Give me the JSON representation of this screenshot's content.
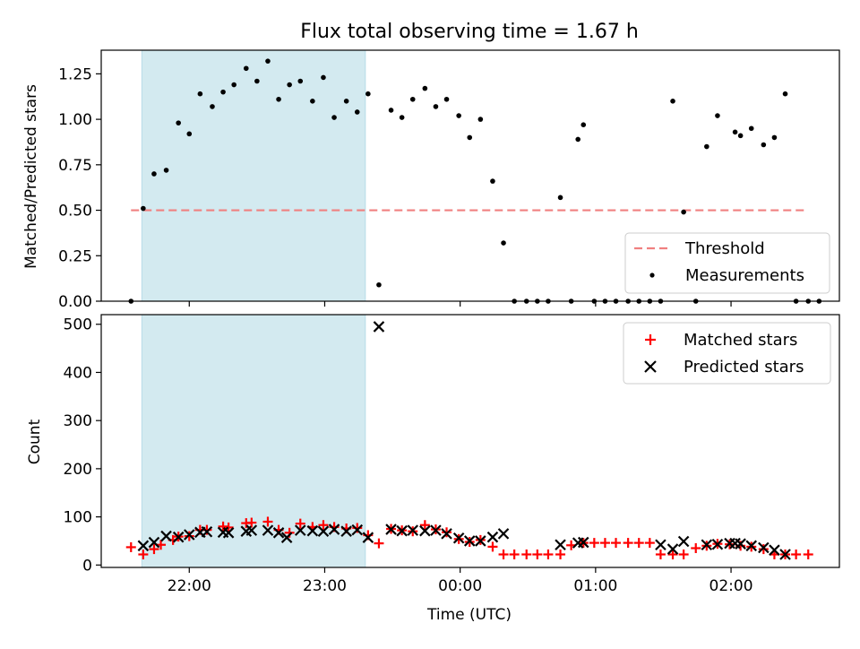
{
  "chart_data": {
    "title": "Flux total observing time = 1.67 h",
    "xlabel": "Time (UTC)",
    "x_ticks": [
      "22:00",
      "23:00",
      "00:00",
      "01:00",
      "02:00"
    ],
    "x_tick_hours": [
      22,
      23,
      24,
      25,
      26
    ],
    "x_range_hours": [
      21.35,
      26.8
    ],
    "shaded_span_hours": [
      21.65,
      23.3
    ],
    "shade_color": "#d3eaf0",
    "top": {
      "type": "scatter",
      "ylabel": "Matched/Predicted stars",
      "ylim": [
        0,
        1.38
      ],
      "yticks": [
        "0.00",
        "0.25",
        "0.50",
        "0.75",
        "1.00",
        "1.25"
      ],
      "ytick_values": [
        0,
        0.25,
        0.5,
        0.75,
        1.0,
        1.25
      ],
      "threshold": {
        "name": "Threshold",
        "value": 0.5,
        "x_range": [
          21.57,
          26.57
        ],
        "color": "#f08080"
      },
      "measurements_name": "Measurements",
      "measurements": [
        [
          21.57,
          0.0
        ],
        [
          21.66,
          0.51
        ],
        [
          21.74,
          0.7
        ],
        [
          21.83,
          0.72
        ],
        [
          21.92,
          0.98
        ],
        [
          22.0,
          0.92
        ],
        [
          22.08,
          1.14
        ],
        [
          22.17,
          1.07
        ],
        [
          22.25,
          1.15
        ],
        [
          22.33,
          1.19
        ],
        [
          22.42,
          1.28
        ],
        [
          22.5,
          1.21
        ],
        [
          22.58,
          1.32
        ],
        [
          22.66,
          1.11
        ],
        [
          22.74,
          1.19
        ],
        [
          22.82,
          1.21
        ],
        [
          22.91,
          1.1
        ],
        [
          22.99,
          1.23
        ],
        [
          23.07,
          1.01
        ],
        [
          23.16,
          1.1
        ],
        [
          23.24,
          1.04
        ],
        [
          23.32,
          1.14
        ],
        [
          23.4,
          0.09
        ],
        [
          23.49,
          1.05
        ],
        [
          23.57,
          1.01
        ],
        [
          23.65,
          1.11
        ],
        [
          23.74,
          1.17
        ],
        [
          23.82,
          1.07
        ],
        [
          23.9,
          1.11
        ],
        [
          23.99,
          1.02
        ],
        [
          24.07,
          0.9
        ],
        [
          24.15,
          1.0
        ],
        [
          24.24,
          0.66
        ],
        [
          24.32,
          0.32
        ],
        [
          24.4,
          0.0
        ],
        [
          24.49,
          0.0
        ],
        [
          24.57,
          0.0
        ],
        [
          24.65,
          0.0
        ],
        [
          24.74,
          0.57
        ],
        [
          24.82,
          0.0
        ],
        [
          24.87,
          0.89
        ],
        [
          24.91,
          0.97
        ],
        [
          24.99,
          0.0
        ],
        [
          25.07,
          0.0
        ],
        [
          25.15,
          0.0
        ],
        [
          25.24,
          0.0
        ],
        [
          25.32,
          0.0
        ],
        [
          25.4,
          0.0
        ],
        [
          25.48,
          0.0
        ],
        [
          25.57,
          1.1
        ],
        [
          25.65,
          0.49
        ],
        [
          25.74,
          0.0
        ],
        [
          25.82,
          0.85
        ],
        [
          25.9,
          1.02
        ],
        [
          26.07,
          0.91
        ],
        [
          26.03,
          0.93
        ],
        [
          26.15,
          0.95
        ],
        [
          26.24,
          0.86
        ],
        [
          26.32,
          0.9
        ],
        [
          26.4,
          1.14
        ],
        [
          26.48,
          0.0
        ],
        [
          26.57,
          0.0
        ],
        [
          26.65,
          0.0
        ]
      ],
      "legend": [
        "Threshold",
        "Measurements"
      ]
    },
    "bottom": {
      "type": "scatter",
      "ylabel": "Count",
      "ylim": [
        -5,
        520
      ],
      "yticks": [
        "0",
        "100",
        "200",
        "300",
        "400",
        "500"
      ],
      "ytick_values": [
        0,
        100,
        200,
        300,
        400,
        500
      ],
      "series": [
        {
          "name": "Matched stars",
          "color": "#ff0000",
          "marker": "plus",
          "points": [
            [
              21.57,
              37
            ],
            [
              21.66,
              22
            ],
            [
              21.74,
              33
            ],
            [
              21.79,
              42
            ],
            [
              21.88,
              52
            ],
            [
              21.92,
              59
            ],
            [
              22.0,
              60
            ],
            [
              22.08,
              73
            ],
            [
              22.13,
              73
            ],
            [
              22.25,
              80
            ],
            [
              22.29,
              78
            ],
            [
              22.42,
              87
            ],
            [
              22.46,
              88
            ],
            [
              22.58,
              90
            ],
            [
              22.66,
              73
            ],
            [
              22.74,
              67
            ],
            [
              22.82,
              86
            ],
            [
              22.91,
              79
            ],
            [
              22.99,
              83
            ],
            [
              23.07,
              79
            ],
            [
              23.16,
              76
            ],
            [
              23.24,
              77
            ],
            [
              23.32,
              62
            ],
            [
              23.4,
              45
            ],
            [
              23.49,
              75
            ],
            [
              23.57,
              72
            ],
            [
              23.65,
              70
            ],
            [
              23.74,
              83
            ],
            [
              23.82,
              74
            ],
            [
              23.9,
              68
            ],
            [
              23.99,
              54
            ],
            [
              24.07,
              48
            ],
            [
              24.15,
              52
            ],
            [
              24.24,
              38
            ],
            [
              24.32,
              22
            ],
            [
              24.4,
              22
            ],
            [
              24.49,
              22
            ],
            [
              24.57,
              22
            ],
            [
              24.65,
              22
            ],
            [
              24.74,
              22
            ],
            [
              24.82,
              41
            ],
            [
              24.91,
              46
            ],
            [
              24.99,
              46
            ],
            [
              25.07,
              46
            ],
            [
              25.15,
              46
            ],
            [
              25.24,
              46
            ],
            [
              25.32,
              46
            ],
            [
              25.4,
              46
            ],
            [
              25.48,
              22
            ],
            [
              25.57,
              22
            ],
            [
              25.65,
              22
            ],
            [
              25.74,
              35
            ],
            [
              25.82,
              40
            ],
            [
              25.9,
              44
            ],
            [
              25.99,
              43
            ],
            [
              26.07,
              40
            ],
            [
              26.15,
              38
            ],
            [
              26.24,
              33
            ],
            [
              26.32,
              22
            ],
            [
              26.4,
              22
            ],
            [
              26.48,
              22
            ],
            [
              26.57,
              22
            ]
          ]
        },
        {
          "name": "Predicted stars",
          "color": "#000000",
          "marker": "x",
          "points": [
            [
              21.66,
              40
            ],
            [
              21.74,
              47
            ],
            [
              21.83,
              60
            ],
            [
              21.92,
              58
            ],
            [
              22.0,
              63
            ],
            [
              22.08,
              68
            ],
            [
              22.13,
              69
            ],
            [
              22.25,
              68
            ],
            [
              22.29,
              67
            ],
            [
              22.42,
              70
            ],
            [
              22.46,
              72
            ],
            [
              22.58,
              72
            ],
            [
              22.66,
              67
            ],
            [
              22.72,
              57
            ],
            [
              22.82,
              72
            ],
            [
              22.91,
              71
            ],
            [
              22.99,
              70
            ],
            [
              23.07,
              74
            ],
            [
              23.16,
              70
            ],
            [
              23.24,
              73
            ],
            [
              23.32,
              57
            ],
            [
              23.4,
              495
            ],
            [
              23.49,
              74
            ],
            [
              23.57,
              71
            ],
            [
              23.65,
              72
            ],
            [
              23.74,
              71
            ],
            [
              23.82,
              72
            ],
            [
              23.9,
              65
            ],
            [
              23.99,
              56
            ],
            [
              24.07,
              50
            ],
            [
              24.15,
              50
            ],
            [
              24.24,
              58
            ],
            [
              24.32,
              65
            ],
            [
              24.74,
              42
            ],
            [
              24.87,
              46
            ],
            [
              24.91,
              47
            ],
            [
              25.48,
              42
            ],
            [
              25.57,
              33
            ],
            [
              25.65,
              49
            ],
            [
              25.82,
              42
            ],
            [
              25.9,
              43
            ],
            [
              25.99,
              45
            ],
            [
              26.03,
              45
            ],
            [
              26.07,
              44
            ],
            [
              26.15,
              40
            ],
            [
              26.24,
              36
            ],
            [
              26.32,
              31
            ],
            [
              26.4,
              22
            ]
          ]
        }
      ],
      "legend": [
        "Matched stars",
        "Predicted stars"
      ]
    }
  }
}
